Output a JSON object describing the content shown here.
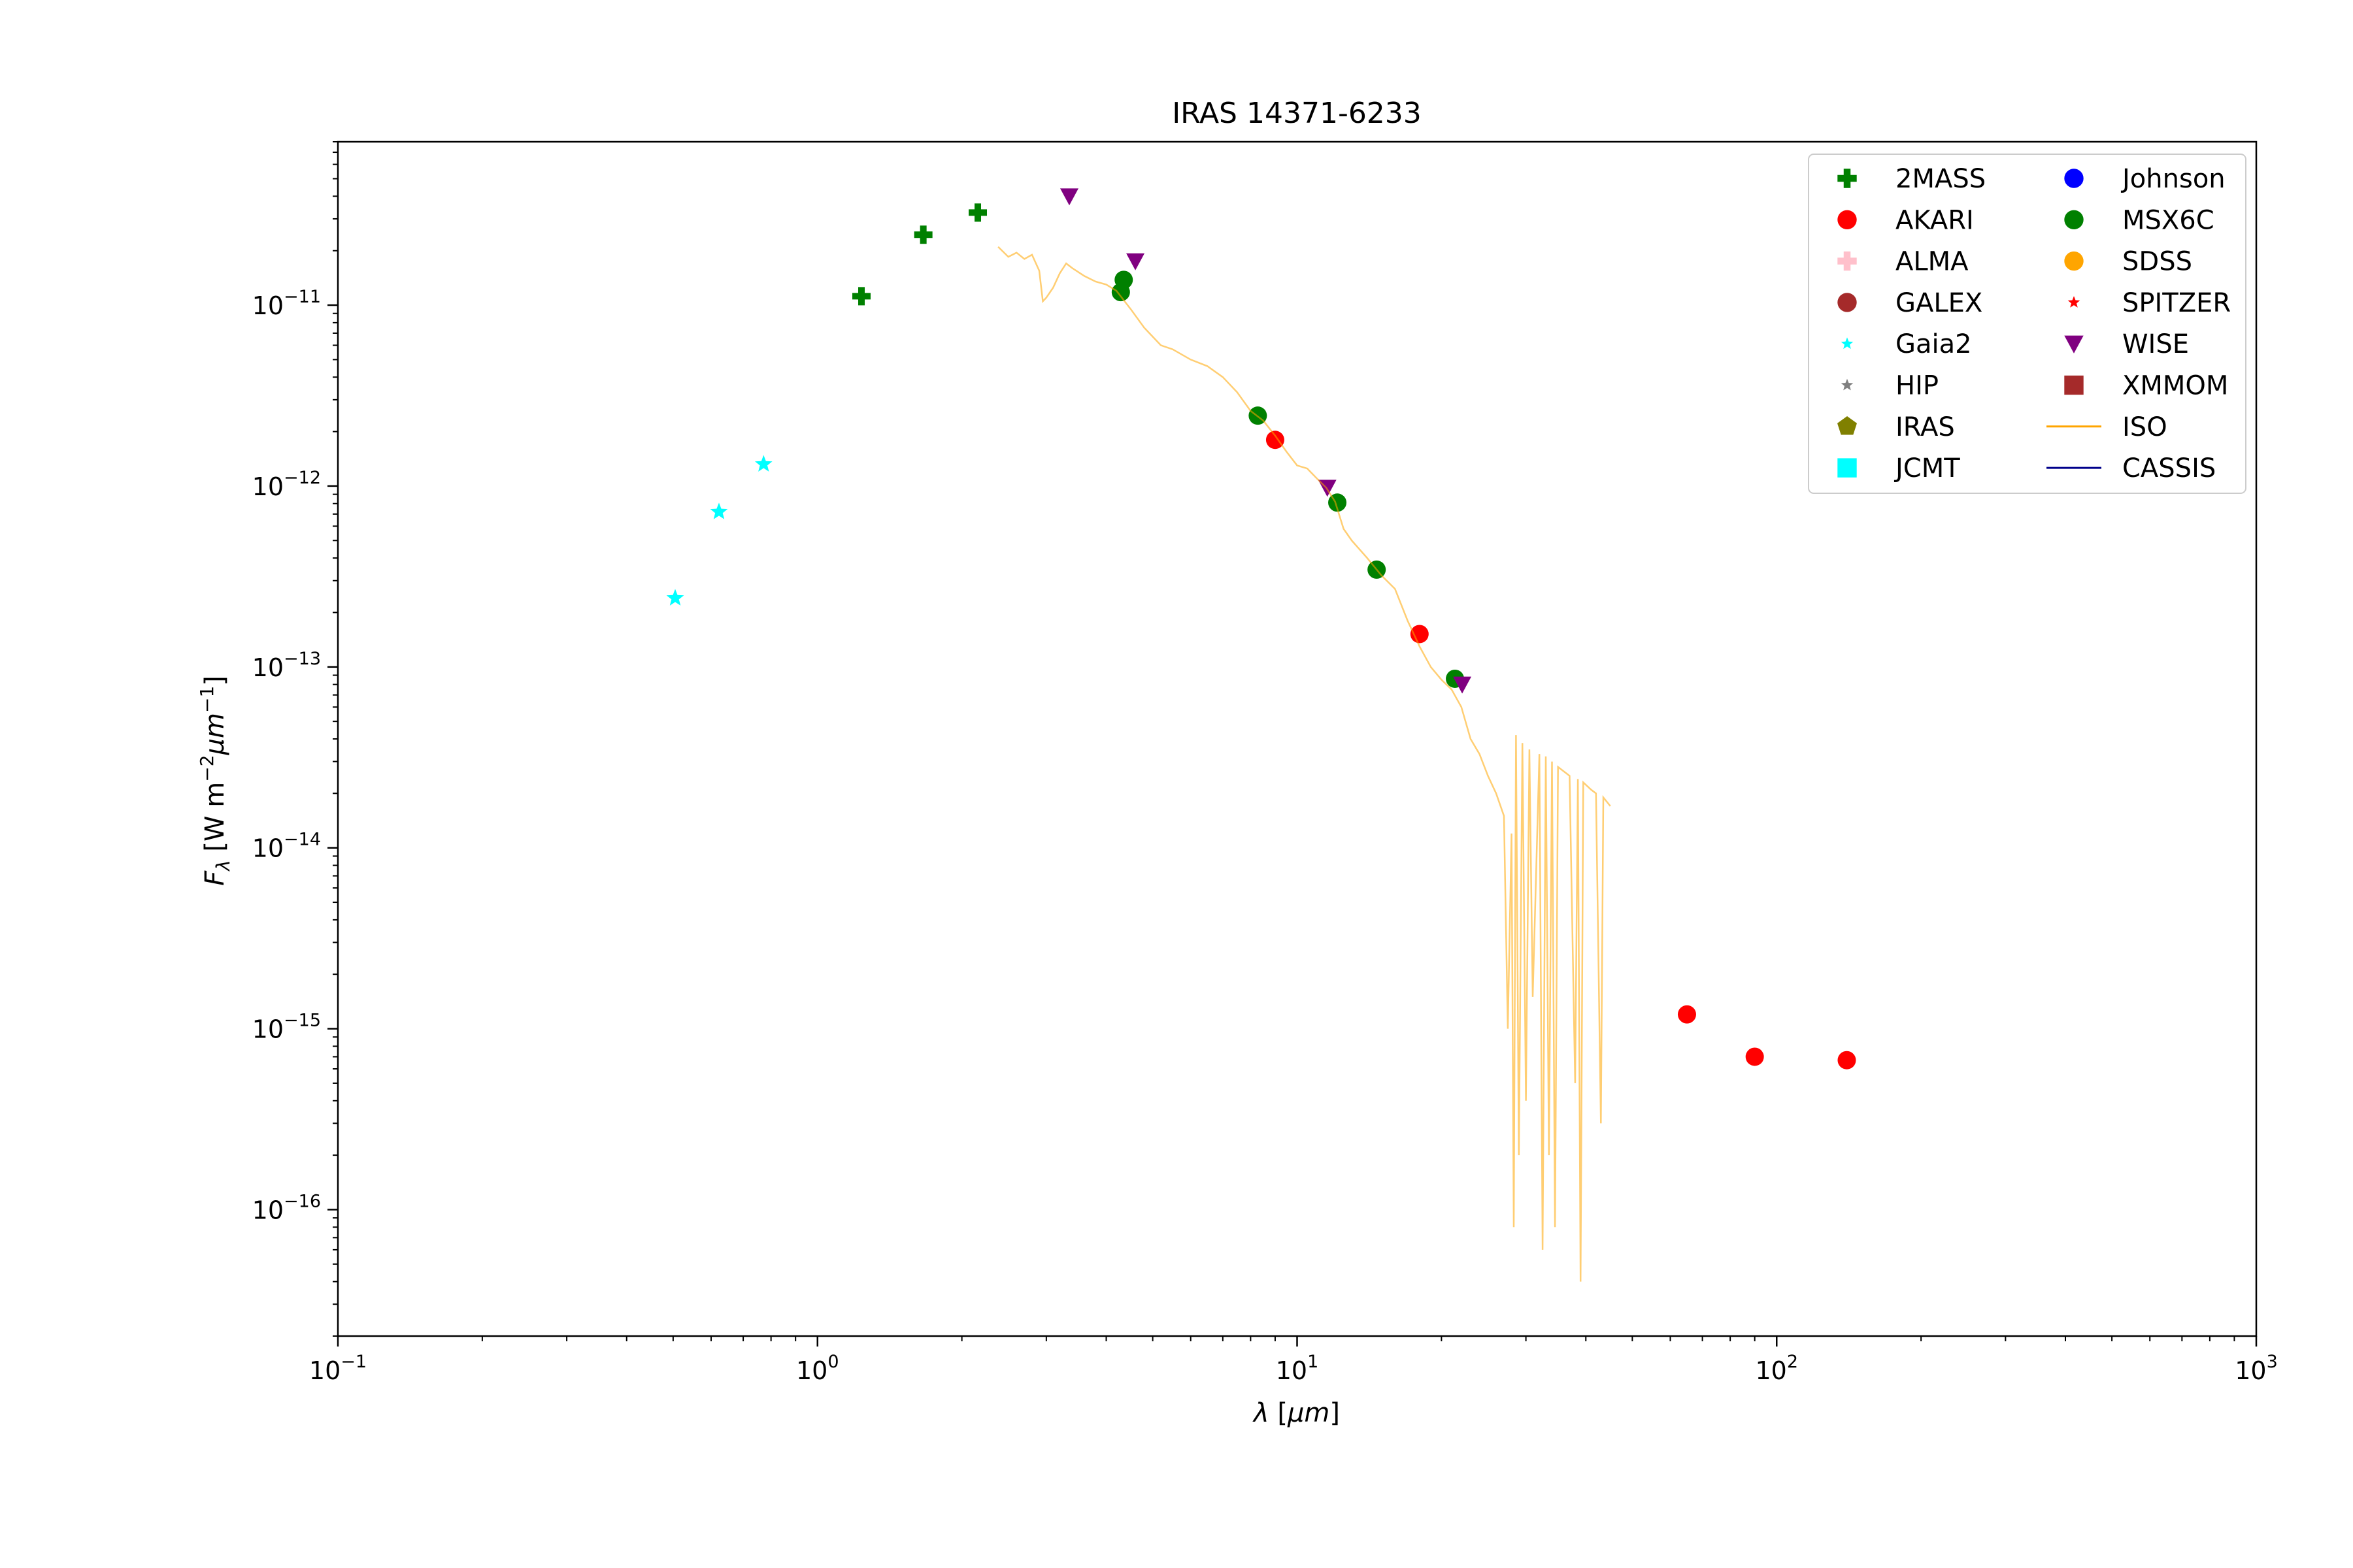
{
  "chart_data": {
    "type": "scatter",
    "title": "IRAS 14371-6233",
    "xlabel": "λ [μm]",
    "ylabel": "F_λ [W m^-2 μm^-1]",
    "x_scale": "log",
    "y_scale": "log",
    "xlim": [
      0.1,
      1000
    ],
    "ylim": [
      2e-17,
      8e-11
    ],
    "grid": false,
    "legend_position": "top-right",
    "x_ticks": [
      {
        "value": 0.1,
        "base": "10",
        "exp": "−1"
      },
      {
        "value": 1,
        "base": "10",
        "exp": "0"
      },
      {
        "value": 10,
        "base": "10",
        "exp": "1"
      },
      {
        "value": 100,
        "base": "10",
        "exp": "2"
      },
      {
        "value": 1000,
        "base": "10",
        "exp": "3"
      }
    ],
    "y_ticks": [
      {
        "value": 1e-16,
        "base": "10",
        "exp": "−16"
      },
      {
        "value": 1e-15,
        "base": "10",
        "exp": "−15"
      },
      {
        "value": 1e-14,
        "base": "10",
        "exp": "−14"
      },
      {
        "value": 1e-13,
        "base": "10",
        "exp": "−13"
      },
      {
        "value": 1e-12,
        "base": "10",
        "exp": "−12"
      },
      {
        "value": 1e-11,
        "base": "10",
        "exp": "−11"
      }
    ],
    "legend": [
      {
        "name": "2MASS",
        "color": "#008000",
        "marker": "plus"
      },
      {
        "name": "AKARI",
        "color": "#ff0000",
        "marker": "circle"
      },
      {
        "name": "ALMA",
        "color": "#ffc0cb",
        "marker": "plus"
      },
      {
        "name": "GALEX",
        "color": "#a52a2a",
        "marker": "circle"
      },
      {
        "name": "Gaia2",
        "color": "#00ffff",
        "marker": "star"
      },
      {
        "name": "HIP",
        "color": "#808080",
        "marker": "star"
      },
      {
        "name": "IRAS",
        "color": "#808000",
        "marker": "pentagon"
      },
      {
        "name": "JCMT",
        "color": "#00ffff",
        "marker": "square"
      },
      {
        "name": "Johnson",
        "color": "#0000ff",
        "marker": "circle"
      },
      {
        "name": "MSX6C",
        "color": "#008000",
        "marker": "circle"
      },
      {
        "name": "SDSS",
        "color": "#ffa500",
        "marker": "circle"
      },
      {
        "name": "SPITZER",
        "color": "#ff0000",
        "marker": "star"
      },
      {
        "name": "WISE",
        "color": "#800080",
        "marker": "triangle-down"
      },
      {
        "name": "XMMOM",
        "color": "#a52a2a",
        "marker": "square"
      },
      {
        "name": "ISO",
        "color": "#ffa500",
        "marker": "line"
      },
      {
        "name": "CASSIS",
        "color": "#00008b",
        "marker": "line"
      }
    ],
    "series": [
      {
        "name": "2MASS",
        "color": "#008000",
        "marker": "plus",
        "points": [
          [
            1.235,
            1.12e-11
          ],
          [
            1.662,
            2.45e-11
          ],
          [
            2.159,
            3.25e-11
          ]
        ]
      },
      {
        "name": "AKARI",
        "color": "#ff0000",
        "marker": "circle",
        "points": [
          [
            9.0,
            1.8e-12
          ],
          [
            18.0,
            1.52e-13
          ],
          [
            65.0,
            1.2e-15
          ],
          [
            90.0,
            7e-16
          ],
          [
            140.0,
            6.7e-16
          ]
        ]
      },
      {
        "name": "Gaia2",
        "color": "#00ffff",
        "marker": "star",
        "points": [
          [
            0.505,
            2.4e-13
          ],
          [
            0.623,
            7.2e-13
          ],
          [
            0.772,
            1.32e-12
          ]
        ]
      },
      {
        "name": "MSX6C",
        "color": "#008000",
        "marker": "circle",
        "points": [
          [
            4.29,
            1.18e-11
          ],
          [
            4.35,
            1.38e-11
          ],
          [
            8.28,
            2.45e-12
          ],
          [
            12.13,
            8.1e-13
          ],
          [
            14.65,
            3.45e-13
          ],
          [
            21.34,
            8.6e-14
          ]
        ]
      },
      {
        "name": "WISE",
        "color": "#800080",
        "marker": "triangle-down",
        "points": [
          [
            3.35,
            4e-11
          ],
          [
            4.6,
            1.75e-11
          ],
          [
            11.56,
            9.8e-13
          ],
          [
            22.09,
            8e-14
          ]
        ]
      },
      {
        "name": "ISO",
        "color": "#ffa500",
        "marker": "line",
        "opacity": 0.55,
        "points": [
          [
            2.38,
            2.1e-11
          ],
          [
            2.5,
            1.85e-11
          ],
          [
            2.6,
            1.95e-11
          ],
          [
            2.7,
            1.8e-11
          ],
          [
            2.8,
            1.9e-11
          ],
          [
            2.9,
            1.55e-11
          ],
          [
            2.95,
            1.05e-11
          ],
          [
            3.0,
            1.1e-11
          ],
          [
            3.1,
            1.25e-11
          ],
          [
            3.2,
            1.5e-11
          ],
          [
            3.3,
            1.7e-11
          ],
          [
            3.4,
            1.6e-11
          ],
          [
            3.6,
            1.45e-11
          ],
          [
            3.8,
            1.35e-11
          ],
          [
            4.0,
            1.3e-11
          ],
          [
            4.2,
            1.2e-11
          ],
          [
            4.5,
            9.5e-12
          ],
          [
            4.8,
            7.5e-12
          ],
          [
            5.2,
            6e-12
          ],
          [
            5.5,
            5.7e-12
          ],
          [
            6.0,
            5e-12
          ],
          [
            6.5,
            4.6e-12
          ],
          [
            7.0,
            4e-12
          ],
          [
            7.5,
            3.3e-12
          ],
          [
            8.0,
            2.6e-12
          ],
          [
            8.5,
            2.3e-12
          ],
          [
            9.0,
            1.9e-12
          ],
          [
            9.5,
            1.55e-12
          ],
          [
            10.0,
            1.3e-12
          ],
          [
            10.5,
            1.25e-12
          ],
          [
            11.0,
            1.1e-12
          ],
          [
            11.5,
            9.8e-13
          ],
          [
            12.0,
            8.2e-13
          ],
          [
            12.5,
            5.8e-13
          ],
          [
            13.0,
            5e-13
          ],
          [
            14.0,
            4e-13
          ],
          [
            15.0,
            3.2e-13
          ],
          [
            16.0,
            2.7e-13
          ],
          [
            17.0,
            1.8e-13
          ],
          [
            18.0,
            1.3e-13
          ],
          [
            19.0,
            1e-13
          ],
          [
            20.0,
            8.5e-14
          ],
          [
            21.0,
            7.5e-14
          ],
          [
            22.0,
            6e-14
          ],
          [
            23.0,
            4e-14
          ],
          [
            24.0,
            3.3e-14
          ],
          [
            25.0,
            2.5e-14
          ],
          [
            26.0,
            2e-14
          ],
          [
            27.0,
            1.5e-14
          ],
          [
            27.5,
            1e-15
          ],
          [
            28.0,
            1.2e-14
          ],
          [
            28.3,
            8e-17
          ],
          [
            28.6,
            4.2e-14
          ],
          [
            29.0,
            2e-16
          ],
          [
            29.5,
            3.8e-14
          ],
          [
            30.0,
            4e-16
          ],
          [
            30.5,
            3.5e-14
          ],
          [
            31.0,
            1.5e-15
          ],
          [
            32.0,
            3.3e-14
          ],
          [
            32.5,
            6e-17
          ],
          [
            33.0,
            3.2e-14
          ],
          [
            33.5,
            2e-16
          ],
          [
            34.0,
            3e-14
          ],
          [
            34.5,
            8e-17
          ],
          [
            35.0,
            2.8e-14
          ],
          [
            37.0,
            2.5e-14
          ],
          [
            38.0,
            5e-16
          ],
          [
            38.5,
            2.4e-14
          ],
          [
            39.0,
            4e-17
          ],
          [
            39.5,
            2.3e-14
          ],
          [
            41.0,
            2.1e-14
          ],
          [
            42.0,
            2e-14
          ],
          [
            43.0,
            3e-16
          ],
          [
            43.5,
            1.9e-14
          ],
          [
            45.0,
            1.7e-14
          ]
        ]
      }
    ]
  }
}
